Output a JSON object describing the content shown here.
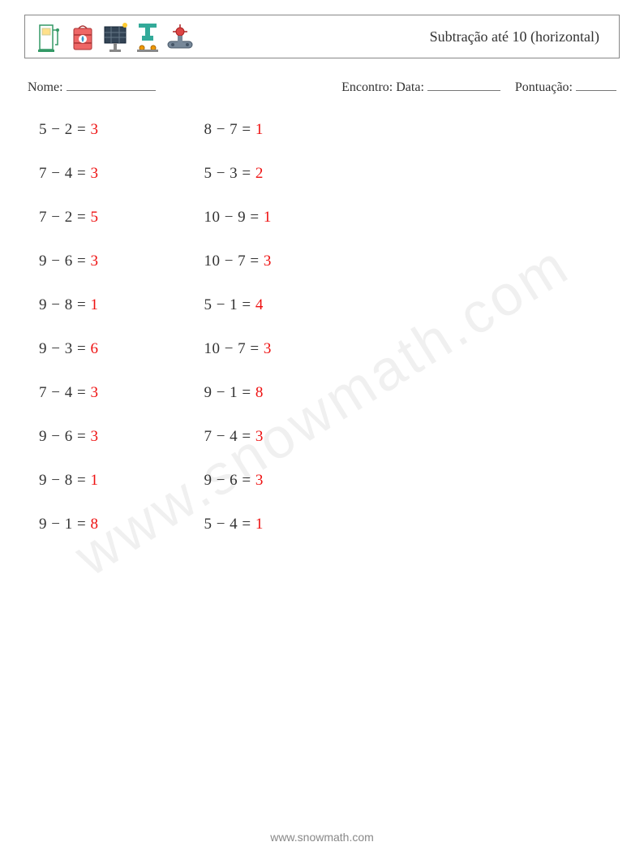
{
  "header": {
    "title": "Subtração até 10 (horizontal)",
    "icons": [
      "gas-pump",
      "oil-barrel",
      "solar-panel",
      "press",
      "pipeline"
    ]
  },
  "info": {
    "name_label": "Nome:",
    "encounter_label": "Encontro:",
    "date_label": "Data:",
    "score_label": "Pontuação:"
  },
  "answer_color": "#ee1111",
  "text_color": "#333333",
  "font_size_problem": 19,
  "columns": [
    [
      {
        "a": 5,
        "b": 2,
        "ans": 3
      },
      {
        "a": 7,
        "b": 4,
        "ans": 3
      },
      {
        "a": 7,
        "b": 2,
        "ans": 5
      },
      {
        "a": 9,
        "b": 6,
        "ans": 3
      },
      {
        "a": 9,
        "b": 8,
        "ans": 1
      },
      {
        "a": 9,
        "b": 3,
        "ans": 6
      },
      {
        "a": 7,
        "b": 4,
        "ans": 3
      },
      {
        "a": 9,
        "b": 6,
        "ans": 3
      },
      {
        "a": 9,
        "b": 8,
        "ans": 1
      },
      {
        "a": 9,
        "b": 1,
        "ans": 8
      }
    ],
    [
      {
        "a": 8,
        "b": 7,
        "ans": 1
      },
      {
        "a": 5,
        "b": 3,
        "ans": 2
      },
      {
        "a": 10,
        "b": 9,
        "ans": 1
      },
      {
        "a": 10,
        "b": 7,
        "ans": 3
      },
      {
        "a": 5,
        "b": 1,
        "ans": 4
      },
      {
        "a": 10,
        "b": 7,
        "ans": 3
      },
      {
        "a": 9,
        "b": 1,
        "ans": 8
      },
      {
        "a": 7,
        "b": 4,
        "ans": 3
      },
      {
        "a": 9,
        "b": 6,
        "ans": 3
      },
      {
        "a": 5,
        "b": 4,
        "ans": 1
      }
    ]
  ],
  "watermark": "www.snowmath.com",
  "footer": "www.snowmath.com"
}
